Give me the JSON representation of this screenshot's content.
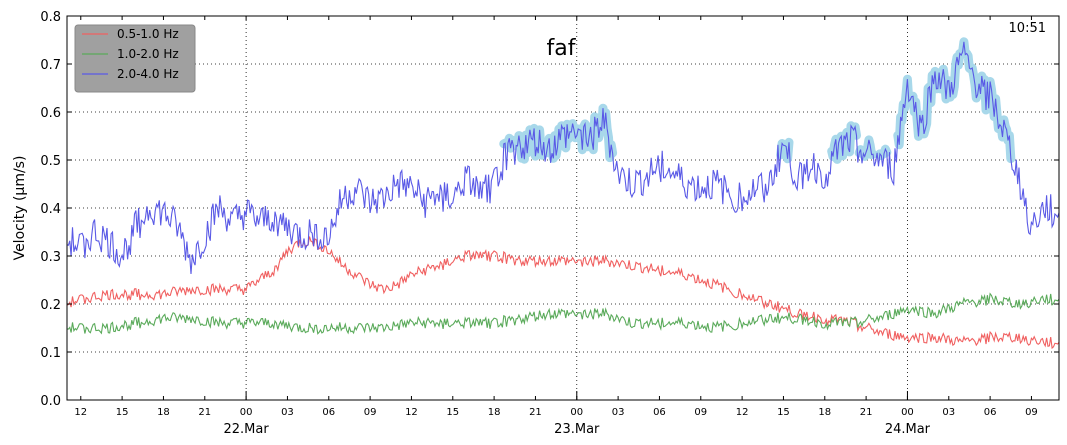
{
  "chart_data": {
    "type": "line",
    "title": "faf",
    "time_label": "10:51",
    "ylabel": "Velocity ($\\mu$m/s)",
    "ylabel_display": "Velocity (μm/s)",
    "ylim": [
      0.0,
      0.8
    ],
    "yticks": [
      0.0,
      0.1,
      0.2,
      0.3,
      0.4,
      0.5,
      0.6,
      0.7,
      0.8
    ],
    "ytick_labels": [
      "0.0",
      "0.1",
      "0.2",
      "0.3",
      "0.4",
      "0.5",
      "0.6",
      "0.7",
      "0.8"
    ],
    "xlim_hours": [
      -13,
      59
    ],
    "hour_ticks": [
      -12,
      -9,
      -6,
      -3,
      0,
      3,
      6,
      9,
      12,
      15,
      18,
      21,
      24,
      27,
      30,
      33,
      36,
      39,
      42,
      45,
      48,
      51,
      54,
      57
    ],
    "hour_tick_labels": [
      "12",
      "15",
      "18",
      "21",
      "00",
      "03",
      "06",
      "09",
      "12",
      "15",
      "18",
      "21",
      "00",
      "03",
      "06",
      "09",
      "12",
      "15",
      "18",
      "21",
      "00",
      "03",
      "06",
      "09"
    ],
    "day_ticks": [
      0,
      24,
      48
    ],
    "day_labels": [
      "22.Mar",
      "23.Mar",
      "24.Mar"
    ],
    "grid": true,
    "legend_position": "top-left",
    "colors": {
      "band_low": "#f06060",
      "band_mid": "#5aaa5a",
      "band_high": "#5a5ae6",
      "highlight": "#a8d8ea",
      "legend_bg": "#a0a0a0"
    },
    "series": [
      {
        "name": "0.5-1.0 Hz",
        "color": "#f06060",
        "x": [
          -13,
          -12,
          -10,
          -8,
          -6,
          -4,
          -2,
          0,
          1,
          2,
          3,
          4,
          5,
          6,
          7,
          8,
          9,
          10,
          11,
          12,
          14,
          16,
          18,
          20,
          22,
          24,
          26,
          28,
          30,
          32,
          34,
          36,
          38,
          40,
          42,
          44,
          46,
          48,
          50,
          52,
          54,
          56,
          58,
          59
        ],
        "values": [
          0.2,
          0.21,
          0.22,
          0.22,
          0.22,
          0.23,
          0.23,
          0.23,
          0.25,
          0.27,
          0.31,
          0.33,
          0.33,
          0.31,
          0.28,
          0.26,
          0.24,
          0.23,
          0.24,
          0.26,
          0.28,
          0.3,
          0.3,
          0.29,
          0.29,
          0.29,
          0.29,
          0.28,
          0.27,
          0.26,
          0.24,
          0.22,
          0.2,
          0.18,
          0.17,
          0.16,
          0.14,
          0.13,
          0.13,
          0.12,
          0.13,
          0.13,
          0.12,
          0.12
        ]
      },
      {
        "name": "1.0-2.0 Hz",
        "color": "#5aaa5a",
        "x": [
          -13,
          -12,
          -10,
          -8,
          -6,
          -4,
          -2,
          0,
          2,
          4,
          6,
          8,
          10,
          12,
          14,
          16,
          18,
          20,
          22,
          24,
          26,
          28,
          30,
          32,
          34,
          36,
          38,
          40,
          42,
          44,
          46,
          48,
          50,
          52,
          54,
          56,
          58,
          59
        ],
        "values": [
          0.15,
          0.15,
          0.15,
          0.16,
          0.17,
          0.17,
          0.16,
          0.16,
          0.16,
          0.15,
          0.15,
          0.15,
          0.15,
          0.16,
          0.16,
          0.16,
          0.16,
          0.17,
          0.18,
          0.18,
          0.18,
          0.16,
          0.16,
          0.16,
          0.15,
          0.16,
          0.17,
          0.17,
          0.16,
          0.16,
          0.17,
          0.19,
          0.18,
          0.2,
          0.21,
          0.2,
          0.21,
          0.21
        ]
      },
      {
        "name": "2.0-4.0 Hz",
        "color": "#5a5ae6",
        "x": [
          -13,
          -12,
          -11,
          -10,
          -9,
          -8,
          -7,
          -6,
          -5,
          -4,
          -3,
          -2,
          -1,
          0,
          1,
          2,
          3,
          4,
          5,
          6,
          7,
          8,
          9,
          10,
          11,
          12,
          13,
          14,
          15,
          16,
          17,
          18,
          19,
          20,
          21,
          22,
          23,
          24,
          25,
          26,
          27,
          28,
          29,
          30,
          31,
          32,
          33,
          34,
          35,
          36,
          37,
          38,
          39,
          40,
          41,
          42,
          43,
          44,
          45,
          46,
          47,
          48,
          49,
          50,
          51,
          52,
          53,
          54,
          55,
          56,
          57,
          58,
          59
        ],
        "values": [
          0.33,
          0.32,
          0.35,
          0.33,
          0.3,
          0.36,
          0.4,
          0.39,
          0.36,
          0.29,
          0.34,
          0.4,
          0.37,
          0.39,
          0.37,
          0.38,
          0.36,
          0.34,
          0.35,
          0.34,
          0.42,
          0.44,
          0.41,
          0.42,
          0.45,
          0.44,
          0.41,
          0.43,
          0.42,
          0.46,
          0.43,
          0.45,
          0.52,
          0.53,
          0.54,
          0.52,
          0.55,
          0.56,
          0.55,
          0.58,
          0.47,
          0.45,
          0.46,
          0.49,
          0.47,
          0.45,
          0.44,
          0.45,
          0.43,
          0.42,
          0.44,
          0.45,
          0.53,
          0.46,
          0.49,
          0.47,
          0.52,
          0.54,
          0.51,
          0.5,
          0.48,
          0.66,
          0.56,
          0.68,
          0.64,
          0.72,
          0.66,
          0.63,
          0.56,
          0.47,
          0.36,
          0.4,
          0.39
        ]
      }
    ]
  },
  "legend": {
    "items": [
      "0.5-1.0 Hz",
      "1.0-2.0 Hz",
      "2.0-4.0 Hz"
    ]
  }
}
